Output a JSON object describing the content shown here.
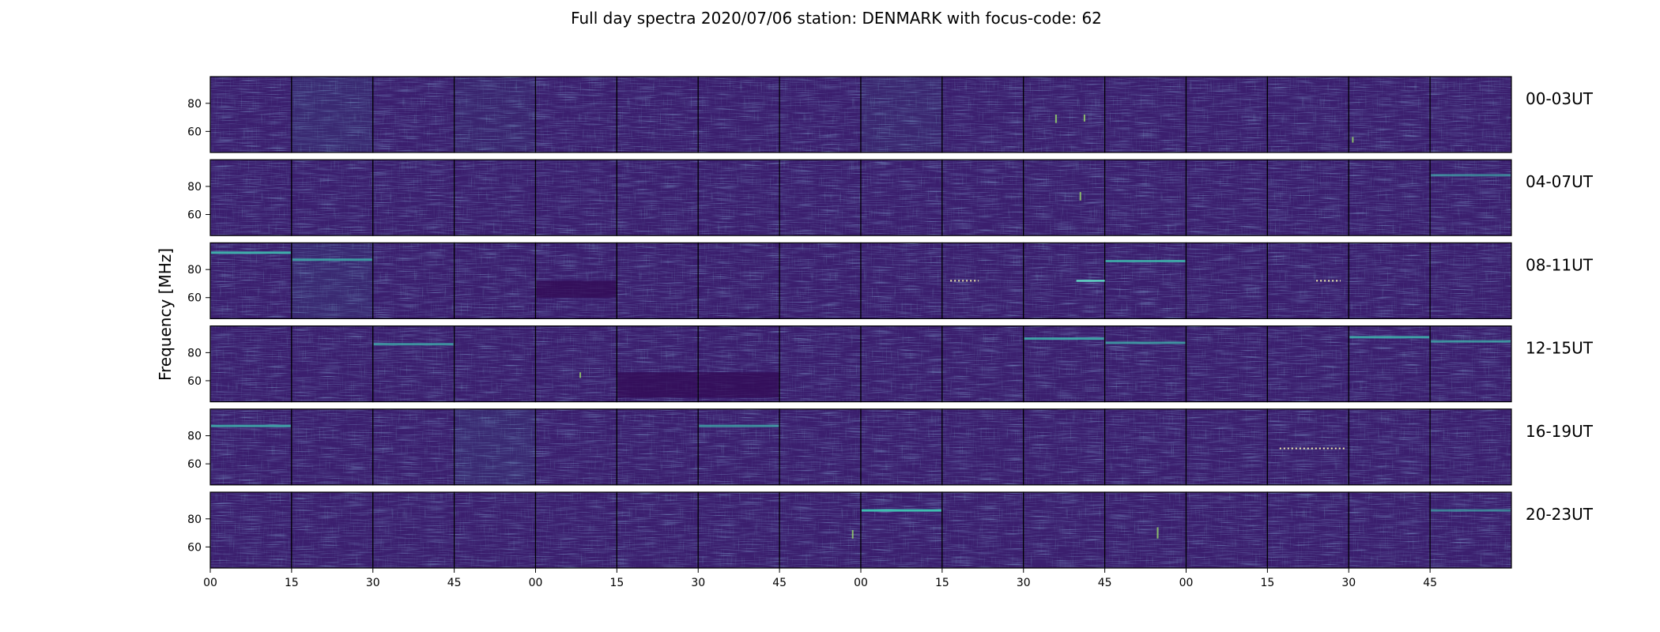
{
  "chart_data": {
    "type": "heatmap",
    "title": "Full day spectra 2020/07/06 station: DENMARK with focus-code: 62",
    "ylabel": "Frequency [MHz]",
    "xlabel": "",
    "colormap": "viridis",
    "ylim": [
      45,
      99
    ],
    "yticks": [
      60,
      80
    ],
    "xticks": [
      "00",
      "15",
      "30",
      "45",
      "00",
      "15",
      "30",
      "45",
      "00",
      "15",
      "30",
      "45",
      "00",
      "15",
      "30",
      "45"
    ],
    "panels_per_row": 16,
    "panel_minutes": 15,
    "rows": [
      {
        "label": "00-03UT"
      },
      {
        "label": "04-07UT"
      },
      {
        "label": "08-11UT"
      },
      {
        "label": "12-15UT"
      },
      {
        "label": "16-19UT"
      },
      {
        "label": "20-23UT"
      }
    ],
    "features": [
      {
        "row": 0,
        "panel": 1,
        "type": "broadband_noise",
        "intensity": 0.5
      },
      {
        "row": 0,
        "panel": 3,
        "type": "broadband_noise",
        "intensity": 0.3
      },
      {
        "row": 0,
        "panel": 8,
        "type": "broadband_noise",
        "intensity": 0.4
      },
      {
        "row": 0,
        "panel": 10,
        "type": "burst",
        "freq": [
          66,
          72
        ],
        "pos": 0.4
      },
      {
        "row": 0,
        "panel": 10,
        "type": "burst",
        "freq": [
          67,
          72
        ],
        "pos": 0.75
      },
      {
        "row": 0,
        "panel": 14,
        "type": "burst",
        "freq": [
          52,
          56
        ],
        "pos": 0.05
      },
      {
        "row": 1,
        "panel": 10,
        "type": "burst",
        "freq": [
          70,
          76
        ],
        "pos": 0.7
      },
      {
        "row": 1,
        "panel": 15,
        "type": "line",
        "freq": 88,
        "intensity": 0.6
      },
      {
        "row": 2,
        "panel": 0,
        "type": "line",
        "freq": 92,
        "intensity": 0.9
      },
      {
        "row": 2,
        "panel": 1,
        "type": "line",
        "freq": 87,
        "intensity": 0.8
      },
      {
        "row": 2,
        "panel": 1,
        "type": "broadband_noise",
        "intensity": 0.5
      },
      {
        "row": 2,
        "panel": 4,
        "type": "dark_band",
        "freq": [
          60,
          72
        ]
      },
      {
        "row": 2,
        "panel": 9,
        "type": "dotted_line",
        "freq": 72,
        "span": [
          0.1,
          0.45
        ]
      },
      {
        "row": 2,
        "panel": 10,
        "type": "line_segment",
        "freq": 72,
        "span": [
          0.65,
          1.0
        ]
      },
      {
        "row": 2,
        "panel": 11,
        "type": "line",
        "freq": 86,
        "intensity": 0.8
      },
      {
        "row": 2,
        "panel": 13,
        "type": "dotted_line",
        "freq": 72,
        "span": [
          0.6,
          0.9
        ]
      },
      {
        "row": 3,
        "panel": 2,
        "type": "line",
        "freq": 86,
        "intensity": 0.7
      },
      {
        "row": 3,
        "panel": 4,
        "type": "burst",
        "freq": [
          62,
          66
        ],
        "pos": 0.55
      },
      {
        "row": 3,
        "panel": 5,
        "type": "dark_band",
        "freq": [
          48,
          66
        ]
      },
      {
        "row": 3,
        "panel": 6,
        "type": "dark_band",
        "freq": [
          48,
          66
        ]
      },
      {
        "row": 3,
        "panel": 10,
        "type": "line",
        "freq": 90,
        "intensity": 0.8
      },
      {
        "row": 3,
        "panel": 11,
        "type": "line",
        "freq": 87,
        "intensity": 0.7
      },
      {
        "row": 3,
        "panel": 14,
        "type": "line",
        "freq": 91,
        "intensity": 0.8
      },
      {
        "row": 3,
        "panel": 15,
        "type": "line",
        "freq": 88,
        "intensity": 0.7
      },
      {
        "row": 4,
        "panel": 0,
        "type": "line",
        "freq": 87,
        "intensity": 0.8
      },
      {
        "row": 4,
        "panel": 3,
        "type": "broadband_noise",
        "intensity": 0.5
      },
      {
        "row": 4,
        "panel": 6,
        "type": "line",
        "freq": 87,
        "intensity": 0.7
      },
      {
        "row": 4,
        "panel": 13,
        "type": "dotted_line",
        "freq": 71,
        "span": [
          0.15,
          0.95
        ]
      },
      {
        "row": 5,
        "panel": 7,
        "type": "burst",
        "freq": [
          66,
          72
        ],
        "pos": 0.9
      },
      {
        "row": 5,
        "panel": 8,
        "type": "line",
        "freq": 86,
        "intensity": 1.0
      },
      {
        "row": 5,
        "panel": 11,
        "type": "burst",
        "freq": [
          66,
          74
        ],
        "pos": 0.65
      },
      {
        "row": 5,
        "panel": 15,
        "type": "line",
        "freq": 86,
        "intensity": 0.6
      }
    ]
  }
}
